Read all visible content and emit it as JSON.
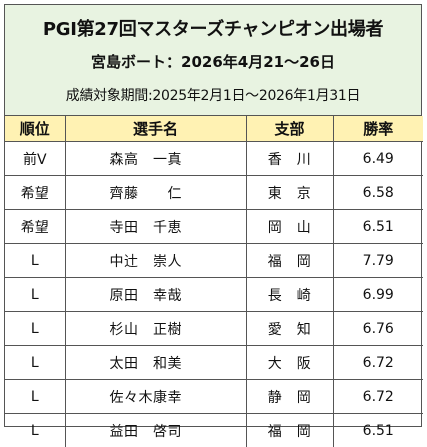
{
  "header": {
    "title": "PGⅠ第27回マスターズチャンピオン出場者",
    "venue": "宮島ボート：2026年4月21～26日",
    "period": "成績対象期間:2025年2月1日～2026年1月31日"
  },
  "table": {
    "columns": [
      "順位",
      "選手名",
      "支部",
      "勝率"
    ],
    "rows": [
      {
        "rank": "前V",
        "name": "森高　一真",
        "branch": "香　川",
        "rate": "6.49"
      },
      {
        "rank": "希望",
        "name": "齊藤　　仁",
        "branch": "東　京",
        "rate": "6.58"
      },
      {
        "rank": "希望",
        "name": "寺田　千恵",
        "branch": "岡　山",
        "rate": "6.51"
      },
      {
        "rank": "L",
        "name": "中辻　崇人",
        "branch": "福　岡",
        "rate": "7.79"
      },
      {
        "rank": "L",
        "name": "原田　幸哉",
        "branch": "長　崎",
        "rate": "6.99"
      },
      {
        "rank": "L",
        "name": "杉山　正樹",
        "branch": "愛　知",
        "rate": "6.76"
      },
      {
        "rank": "L",
        "name": "太田　和美",
        "branch": "大　阪",
        "rate": "6.72"
      },
      {
        "rank": "L",
        "name": "佐々木康幸",
        "branch": "静　岡",
        "rate": "6.72"
      },
      {
        "rank": "L",
        "name": "益田　啓司",
        "branch": "福　岡",
        "rate": "6.51"
      }
    ]
  },
  "colors": {
    "header_bg": "#e8f3e1",
    "column_header_bg": "#fff2b3",
    "border": "#555555"
  }
}
